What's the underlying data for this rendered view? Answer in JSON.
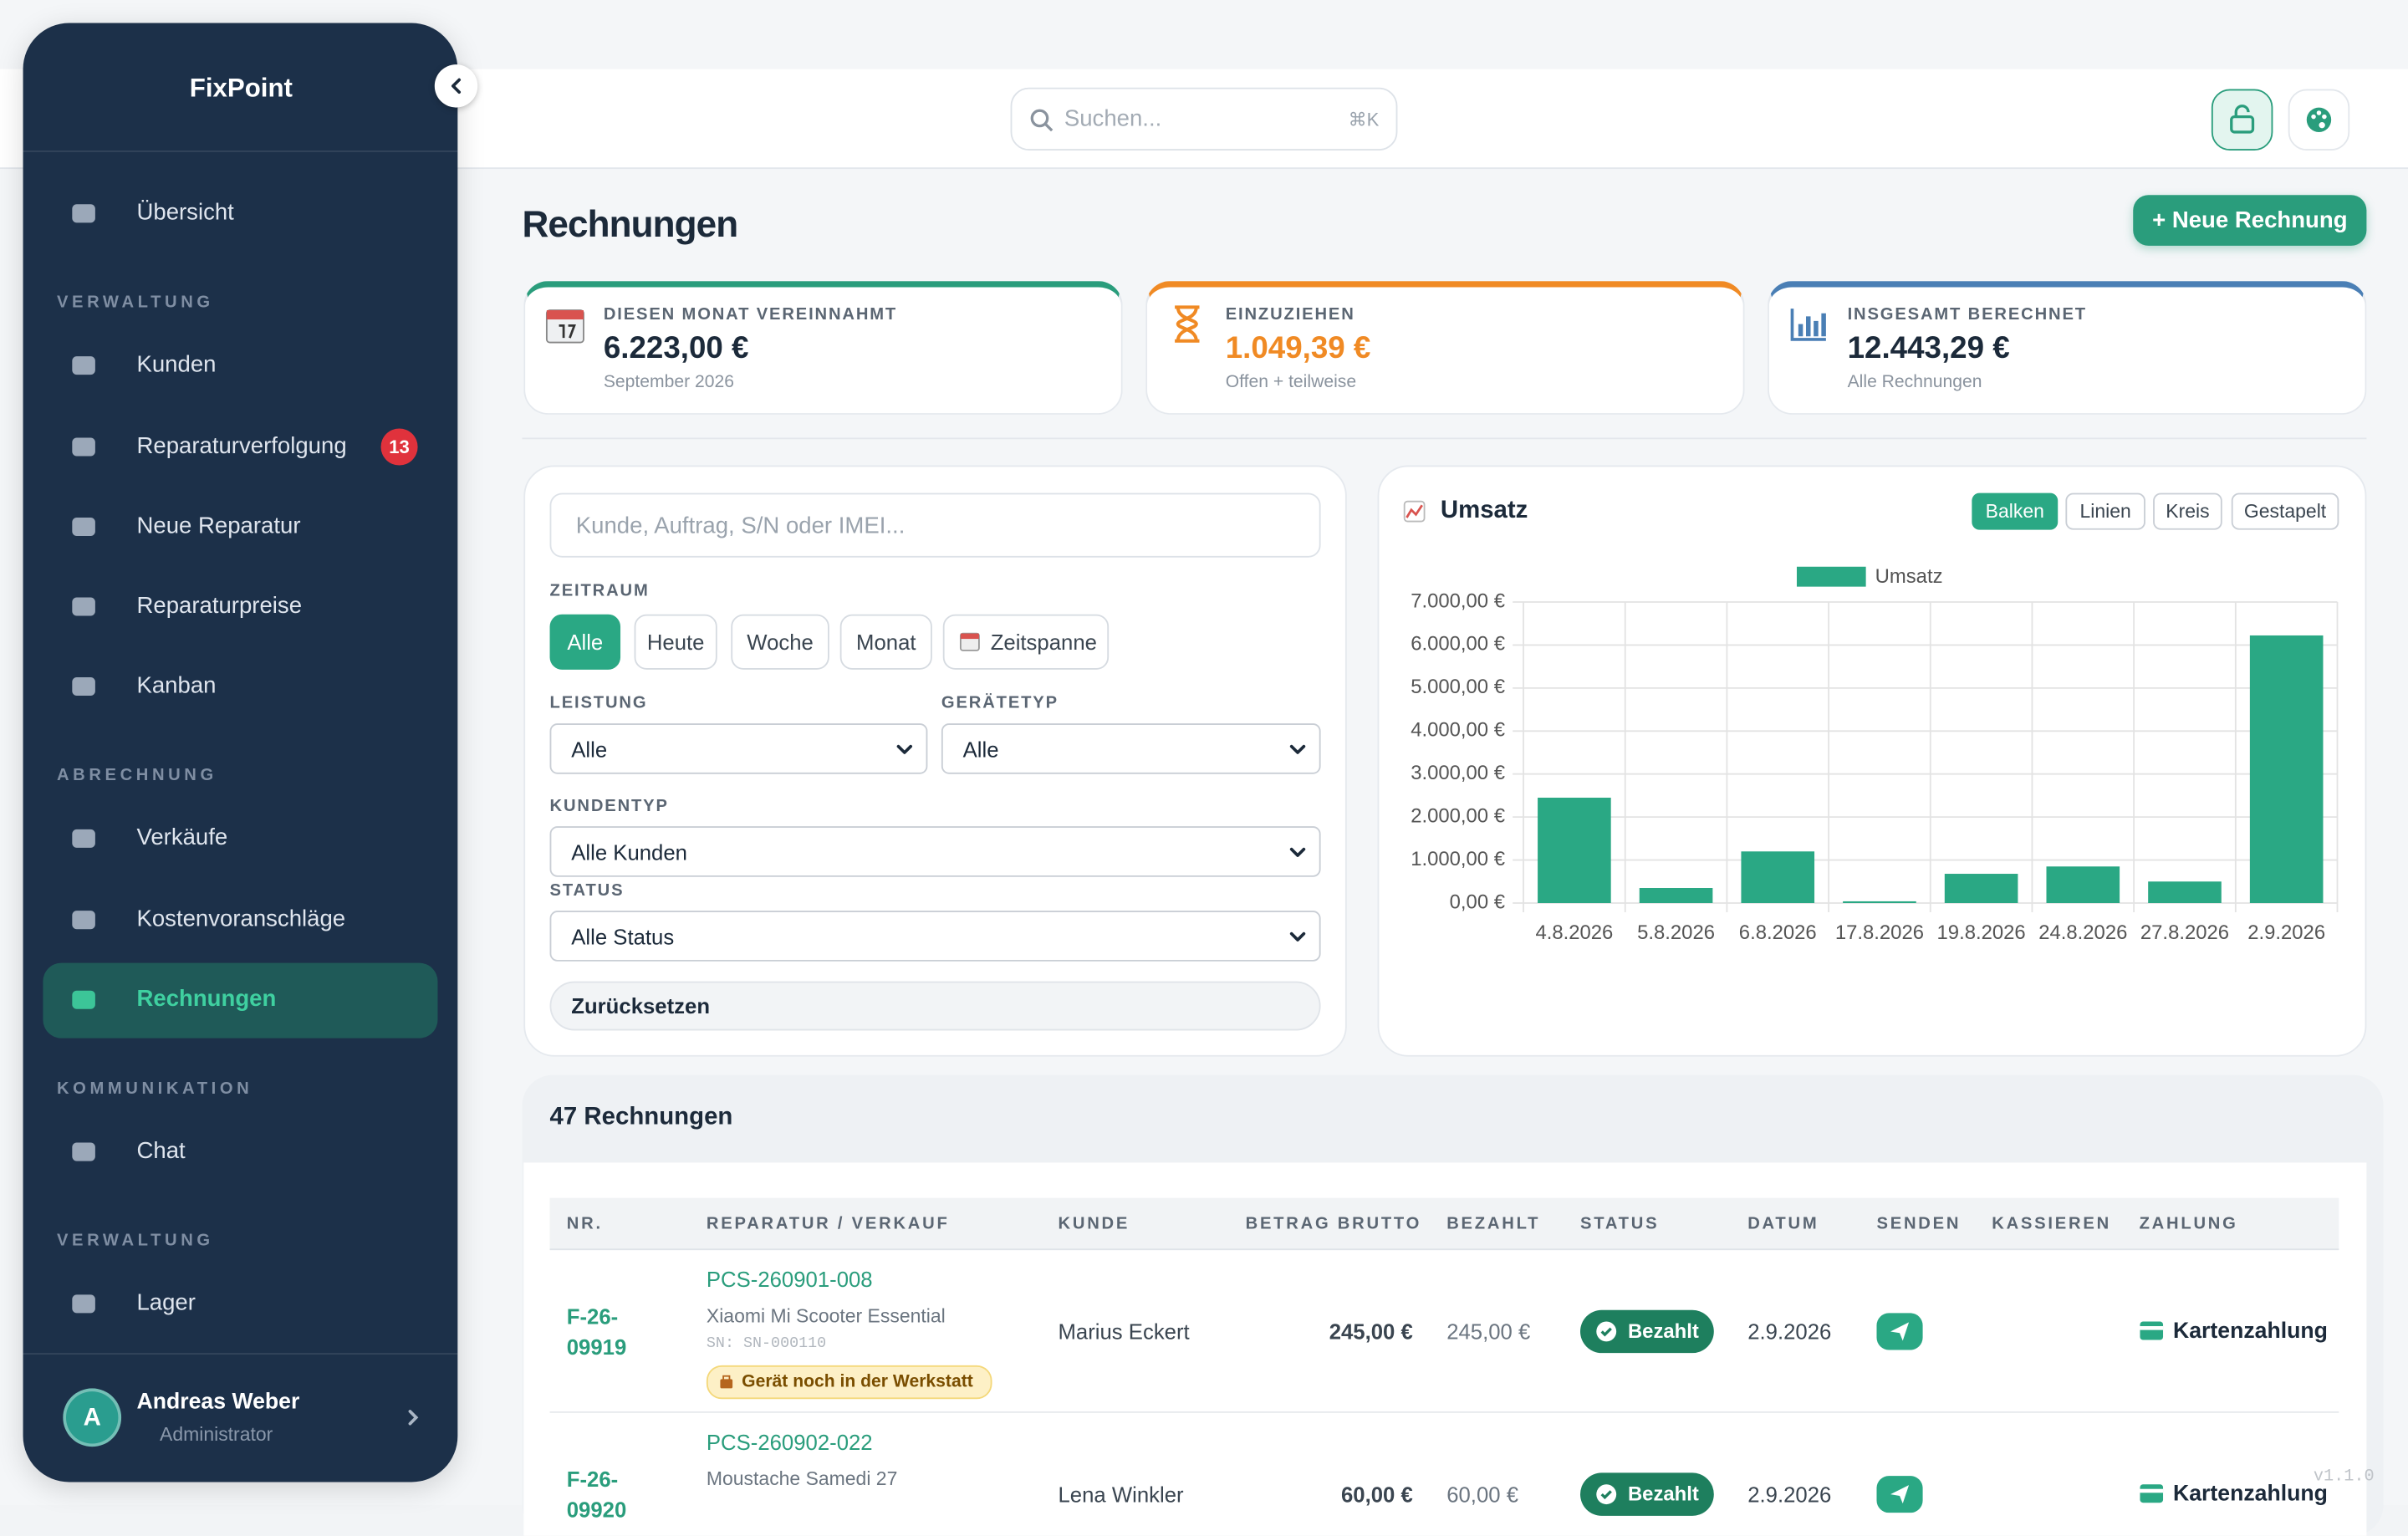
{
  "sidebar": {
    "brand": "FixPoint",
    "items": [
      {
        "label": "Übersicht"
      },
      {
        "section": "VERWALTUNG"
      },
      {
        "label": "Kunden"
      },
      {
        "label": "Reparaturverfolgung",
        "badge": 13
      },
      {
        "label": "Neue Reparatur"
      },
      {
        "label": "Reparaturpreise"
      },
      {
        "label": "Kanban"
      },
      {
        "section": "ABRECHNUNG"
      },
      {
        "label": "Verkäufe"
      },
      {
        "label": "Kostenvoranschläge"
      },
      {
        "label": "Rechnungen",
        "active": true
      },
      {
        "section": "KOMMUNIKATION"
      },
      {
        "label": "Chat"
      },
      {
        "section": "VERWALTUNG"
      },
      {
        "label": "Lager"
      }
    ],
    "user": {
      "initial": "A",
      "name": "Andreas Weber",
      "role": "Administrator"
    }
  },
  "topbar": {
    "search_placeholder": "Suchen...",
    "shortcut": "⌘K"
  },
  "header": {
    "title": "Rechnungen",
    "new_button": "+ Neue Rechnung"
  },
  "stats": [
    {
      "label": "DIESEN MONAT VEREINNAHMT",
      "value": "6.223,00 €",
      "note": "September 2026"
    },
    {
      "label": "EINZUZIEHEN",
      "value": "1.049,39 €",
      "note": "Offen + teilweise"
    },
    {
      "label": "INSGESAMT BERECHNET",
      "value": "12.443,29 €",
      "note": "Alle Rechnungen"
    }
  ],
  "filters": {
    "search_placeholder": "Kunde, Auftrag, S/N oder IMEI...",
    "period_label": "ZEITRAUM",
    "periods": [
      "Alle",
      "Heute",
      "Woche",
      "Monat",
      "Zeitspanne"
    ],
    "service_label": "LEISTUNG",
    "service": "Alle",
    "device_label": "GERÄTETYP",
    "device": "Alle",
    "customer_type_label": "KUNDENTYP",
    "customer_type": "Alle Kunden",
    "status_label": "STATUS",
    "status": "Alle Status",
    "reset": "Zurücksetzen"
  },
  "chart_controls": [
    "Balken",
    "Linien",
    "Kreis",
    "Gestapelt"
  ],
  "chart_data": {
    "type": "bar",
    "title": "Umsatz",
    "categories": [
      "4.8.2026",
      "5.8.2026",
      "6.8.2026",
      "17.8.2026",
      "19.8.2026",
      "24.8.2026",
      "27.8.2026",
      "2.9.2026"
    ],
    "series": [
      {
        "name": "Umsatz",
        "color": "#2aa884",
        "values": [
          2450,
          350,
          1200,
          40,
          680,
          850,
          500,
          6223
        ]
      }
    ],
    "ylim": [
      0,
      7000
    ],
    "yticks": [
      {
        "value": 0,
        "label": "0,00 €"
      },
      {
        "value": 1000,
        "label": "1.000,00 €"
      },
      {
        "value": 2000,
        "label": "2.000,00 €"
      },
      {
        "value": 3000,
        "label": "3.000,00 €"
      },
      {
        "value": 4000,
        "label": "4.000,00 €"
      },
      {
        "value": 5000,
        "label": "5.000,00 €"
      },
      {
        "value": 6000,
        "label": "6.000,00 €"
      },
      {
        "value": 7000,
        "label": "7.000,00 €"
      }
    ],
    "grid": true,
    "legend": "top"
  },
  "table": {
    "count_title": "47 Rechnungen",
    "columns": [
      "NR.",
      "REPARATUR / VERKAUF",
      "KUNDE",
      "BETRAG BRUTTO",
      "BEZAHLT",
      "STATUS",
      "DATUM",
      "SENDEN",
      "KASSIEREN",
      "ZAHLUNG"
    ],
    "rows": [
      {
        "nr": "F-26-09919",
        "order": "PCS-260901-008",
        "item": "Xiaomi Mi Scooter Essential",
        "serial": "SN: SN-000110",
        "note": "Gerät noch in der Werkstatt",
        "customer": "Marius Eckert",
        "gross": "245,00 €",
        "paid": "245,00 €",
        "status": "Bezahlt",
        "date": "2.9.2026",
        "payment": "Kartenzahlung"
      },
      {
        "nr": "F-26-09920",
        "order": "PCS-260902-022",
        "item": "Moustache Samedi 27",
        "customer": "Lena Winkler",
        "gross": "60,00 €",
        "paid": "60,00 €",
        "status": "Bezahlt",
        "date": "2.9.2026",
        "payment": "Kartenzahlung"
      }
    ]
  },
  "version": "v1.1.0"
}
